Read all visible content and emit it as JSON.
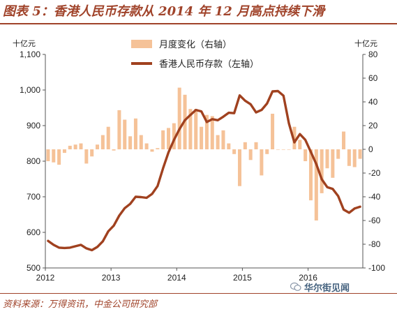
{
  "figure": {
    "title": "图表 5：香港人民币存款从 2014 年 12 月高点持续下滑",
    "source": "资料来源：万得资讯，中金公司研究部",
    "watermark": "华尔街见闻"
  },
  "colors": {
    "accent": "#a0432a",
    "bar": "#f5c298",
    "line": "#a0411f"
  },
  "chart_data": {
    "type": "bar+line",
    "left_axis": {
      "unit": "十亿元",
      "ylim": [
        500,
        1100
      ],
      "ticks": [
        500,
        600,
        700,
        800,
        900,
        1000,
        1100
      ]
    },
    "right_axis": {
      "unit": "十亿元",
      "ylim": [
        -100,
        80
      ],
      "ticks": [
        -100,
        -80,
        -60,
        -40,
        -20,
        0,
        20,
        40,
        60,
        80
      ]
    },
    "x_ticks": [
      "2012",
      "2013",
      "2014",
      "2015",
      "2016"
    ],
    "legend": {
      "placement": "top-center",
      "entries": [
        "月度变化（右轴）",
        "香港人民币存款（左轴）"
      ]
    },
    "grid": false,
    "months": [
      "2012-01",
      "2012-02",
      "2012-03",
      "2012-04",
      "2012-05",
      "2012-06",
      "2012-07",
      "2012-08",
      "2012-09",
      "2012-10",
      "2012-11",
      "2012-12",
      "2013-01",
      "2013-02",
      "2013-03",
      "2013-04",
      "2013-05",
      "2013-06",
      "2013-07",
      "2013-08",
      "2013-09",
      "2013-10",
      "2013-11",
      "2013-12",
      "2014-01",
      "2014-02",
      "2014-03",
      "2014-04",
      "2014-05",
      "2014-06",
      "2014-07",
      "2014-08",
      "2014-09",
      "2014-10",
      "2014-11",
      "2014-12",
      "2015-01",
      "2015-02",
      "2015-03",
      "2015-04",
      "2015-05",
      "2015-06",
      "2015-07",
      "2015-08",
      "2015-09",
      "2015-10",
      "2015-11",
      "2015-12",
      "2016-01",
      "2016-02",
      "2016-03",
      "2016-04",
      "2016-05",
      "2016-06",
      "2016-07",
      "2016-08",
      "2016-09",
      "2016-10"
    ],
    "series": [
      {
        "name": "月度变化（右轴）",
        "type": "bar",
        "axis": "right",
        "values": [
          -10,
          -11,
          -13,
          -3,
          3,
          4,
          5,
          -12,
          -6,
          4,
          12,
          19,
          -1,
          33,
          25,
          11,
          26,
          12,
          5,
          -2,
          1,
          16,
          18,
          22,
          52,
          46,
          34,
          34,
          19,
          29,
          28,
          12,
          16,
          5,
          -4,
          -31,
          6,
          -9,
          6,
          -22,
          -4,
          30,
          0,
          0,
          0,
          19,
          8,
          -10,
          -43,
          -60,
          -37,
          -16,
          -24,
          -8,
          15,
          -14,
          -15,
          -8
        ]
      },
      {
        "name": "香港人民币存款（左轴）",
        "type": "line",
        "axis": "left",
        "values": [
          576,
          565,
          557,
          556,
          557,
          561,
          565,
          555,
          550,
          559,
          575,
          603,
          619,
          647,
          668,
          680,
          700,
          699,
          697,
          708,
          730,
          780,
          825,
          860,
          890,
          915,
          930,
          944,
          940,
          910,
          918,
          915,
          925,
          936,
          935,
          985,
          970,
          960,
          937,
          944,
          962,
          996,
          997,
          984,
          906,
          853,
          876,
          860,
          826,
          792,
          749,
          727,
          722,
          702,
          664,
          655,
          667,
          672
        ]
      }
    ]
  }
}
